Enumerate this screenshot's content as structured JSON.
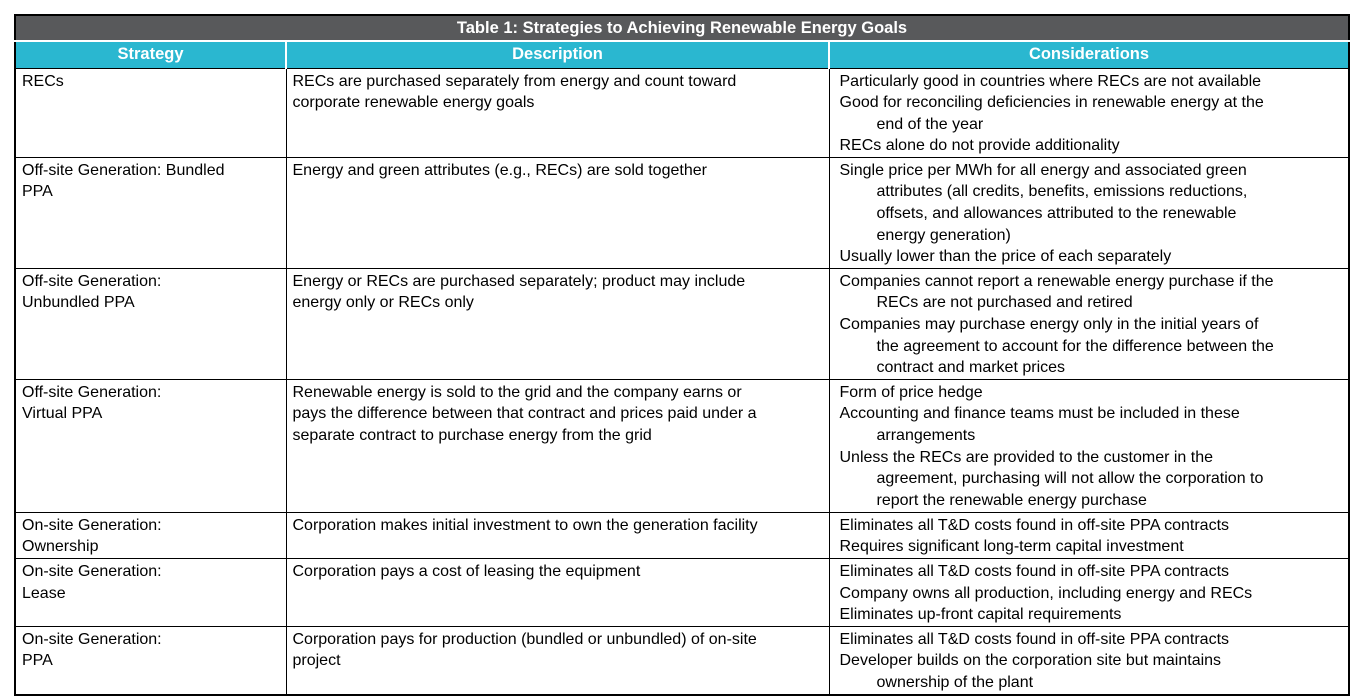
{
  "colors": {
    "title_bar_bg": "#58595B",
    "header_bg": "#2AB7D0",
    "header_text": "#FFFFFF",
    "body_text": "#000000",
    "border": "#000000"
  },
  "table": {
    "title": "Table 1: Strategies to Achieving Renewable Energy Goals",
    "columns": [
      "Strategy",
      "Description",
      "Considerations"
    ],
    "rows": [
      {
        "strategy": "RECs",
        "description": "RECs are purchased separately from energy and count toward\ncorporate renewable energy goals",
        "considerations": [
          "Particularly good in countries where RECs are not available",
          "Good for reconciling deficiencies in renewable energy at the\nend of the year",
          "RECs alone do not provide additionality"
        ]
      },
      {
        "strategy": "Off-site Generation: Bundled\nPPA",
        "description": "Energy and green attributes (e.g., RECs) are sold together",
        "considerations": [
          "Single price per MWh for all energy and associated green\nattributes (all credits, benefits, emissions reductions,\noffsets, and allowances attributed to the renewable\nenergy generation)",
          "Usually lower than the price of each separately"
        ]
      },
      {
        "strategy": "Off-site Generation:\nUnbundled PPA",
        "description": "Energy or RECs are purchased separately; product may include\nenergy only or RECs only",
        "considerations": [
          "Companies cannot report a renewable energy purchase if the\nRECs are not purchased and retired",
          "Companies may purchase energy only in the initial years of\nthe agreement to account for the difference between the\ncontract and market prices"
        ]
      },
      {
        "strategy": "Off-site Generation:\nVirtual PPA",
        "description": "Renewable energy is sold to the grid and the company earns or\npays the difference between that contract and prices paid under a\nseparate contract to purchase energy from the grid",
        "considerations": [
          "Form of price hedge",
          "Accounting and finance teams must be included in these\narrangements",
          "Unless the RECs are provided to the customer in the\nagreement, purchasing will not allow the corporation to\nreport the renewable energy purchase"
        ]
      },
      {
        "strategy": "On-site Generation:\nOwnership",
        "description": "Corporation makes initial investment to own the generation facility",
        "considerations": [
          "Eliminates all T&D costs found in off-site PPA contracts",
          "Requires significant long-term capital investment"
        ]
      },
      {
        "strategy": "On-site Generation:\nLease",
        "description": "Corporation pays a cost of leasing the equipment",
        "considerations": [
          "Eliminates all T&D costs found in off-site PPA contracts",
          "Company owns all production, including energy and RECs",
          "Eliminates up-front capital requirements"
        ]
      },
      {
        "strategy": "On-site Generation:\nPPA",
        "description": "Corporation pays for production (bundled or unbundled) of on-site\nproject",
        "considerations": [
          "Eliminates all T&D costs found in off-site PPA contracts",
          "Developer builds on the corporation site but maintains\nownership of the plant"
        ]
      }
    ]
  }
}
